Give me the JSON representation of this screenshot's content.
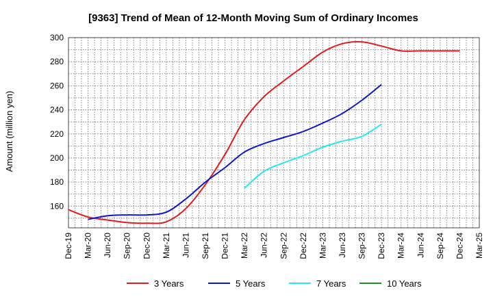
{
  "chart_data": {
    "type": "line",
    "title": "[9363]  Trend of Mean of 12-Month Moving Sum of Ordinary Incomes",
    "xlabel": "",
    "ylabel": "Amount (million yen)",
    "ylim": [
      142,
      300
    ],
    "yticks": [
      160,
      180,
      200,
      220,
      240,
      260,
      280,
      300
    ],
    "grid": true,
    "legend_position": "bottom",
    "categories": [
      "Dec-19",
      "Mar-20",
      "Jun-20",
      "Sep-20",
      "Dec-20",
      "Mar-21",
      "Jun-21",
      "Sep-21",
      "Dec-21",
      "Mar-22",
      "Jun-22",
      "Sep-22",
      "Dec-22",
      "Mar-23",
      "Jun-23",
      "Sep-23",
      "Dec-23",
      "Mar-24",
      "Jun-24",
      "Sep-24",
      "Dec-24",
      "Mar-25"
    ],
    "series": [
      {
        "name": "3 Years",
        "color": "#e31a1c",
        "values": [
          157,
          151,
          148.5,
          146.3,
          145.8,
          147,
          158,
          178,
          203,
          232,
          251,
          264,
          276,
          288,
          295,
          296.5,
          293,
          289,
          289,
          289,
          289,
          null
        ]
      },
      {
        "name": "5 Years",
        "color": "#0a14c8",
        "values": [
          null,
          149,
          152,
          152.7,
          152.7,
          155,
          166,
          180,
          192,
          205,
          212,
          217,
          222,
          229,
          237,
          248,
          261,
          null,
          null,
          null,
          null,
          null
        ]
      },
      {
        "name": "7 Years",
        "color": "#22e8f0",
        "values": [
          null,
          null,
          null,
          null,
          null,
          null,
          null,
          null,
          null,
          175,
          189,
          196,
          202,
          209,
          214,
          218,
          228,
          null,
          null,
          null,
          null,
          null
        ]
      },
      {
        "name": "10 Years",
        "color": "#1e8c1e",
        "values": [
          null,
          null,
          null,
          null,
          null,
          null,
          null,
          null,
          null,
          null,
          null,
          null,
          null,
          null,
          null,
          null,
          null,
          null,
          null,
          null,
          null,
          null
        ]
      }
    ]
  }
}
